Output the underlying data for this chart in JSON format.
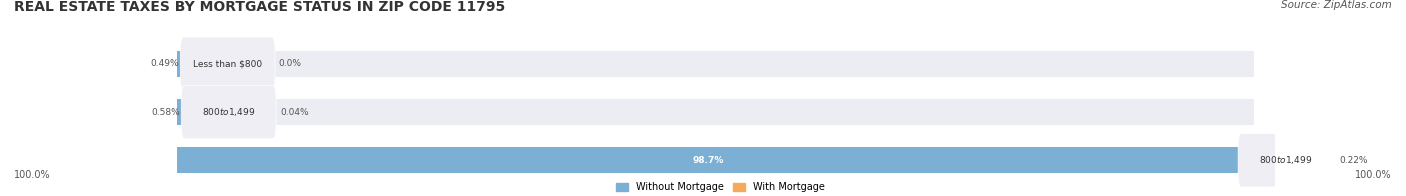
{
  "title": "REAL ESTATE TAXES BY MORTGAGE STATUS IN ZIP CODE 11795",
  "source": "Source: ZipAtlas.com",
  "rows": [
    {
      "without_pct": 0.49,
      "with_pct": 0.0,
      "label": "Less than $800",
      "without_label": "0.49%",
      "with_label": "0.0%"
    },
    {
      "without_pct": 0.58,
      "with_pct": 0.04,
      "label": "$800 to $1,499",
      "without_label": "0.58%",
      "with_label": "0.04%"
    },
    {
      "without_pct": 98.7,
      "with_pct": 0.22,
      "label": "$800 to $1,499",
      "without_label": "98.7%",
      "with_label": "0.22%"
    }
  ],
  "bottom_left": "100.0%",
  "bottom_right": "100.0%",
  "legend_without": "Without Mortgage",
  "legend_with": "With Mortgage",
  "color_without": "#7BAFD4",
  "color_with": "#F5A95B",
  "color_label_bg": "#F0EEF5",
  "bar_bg": "#ECEDF2",
  "total": 100.0,
  "title_fontsize": 10,
  "source_fontsize": 7.5,
  "bar_height": 0.55,
  "fig_bg": "#FFFFFF"
}
